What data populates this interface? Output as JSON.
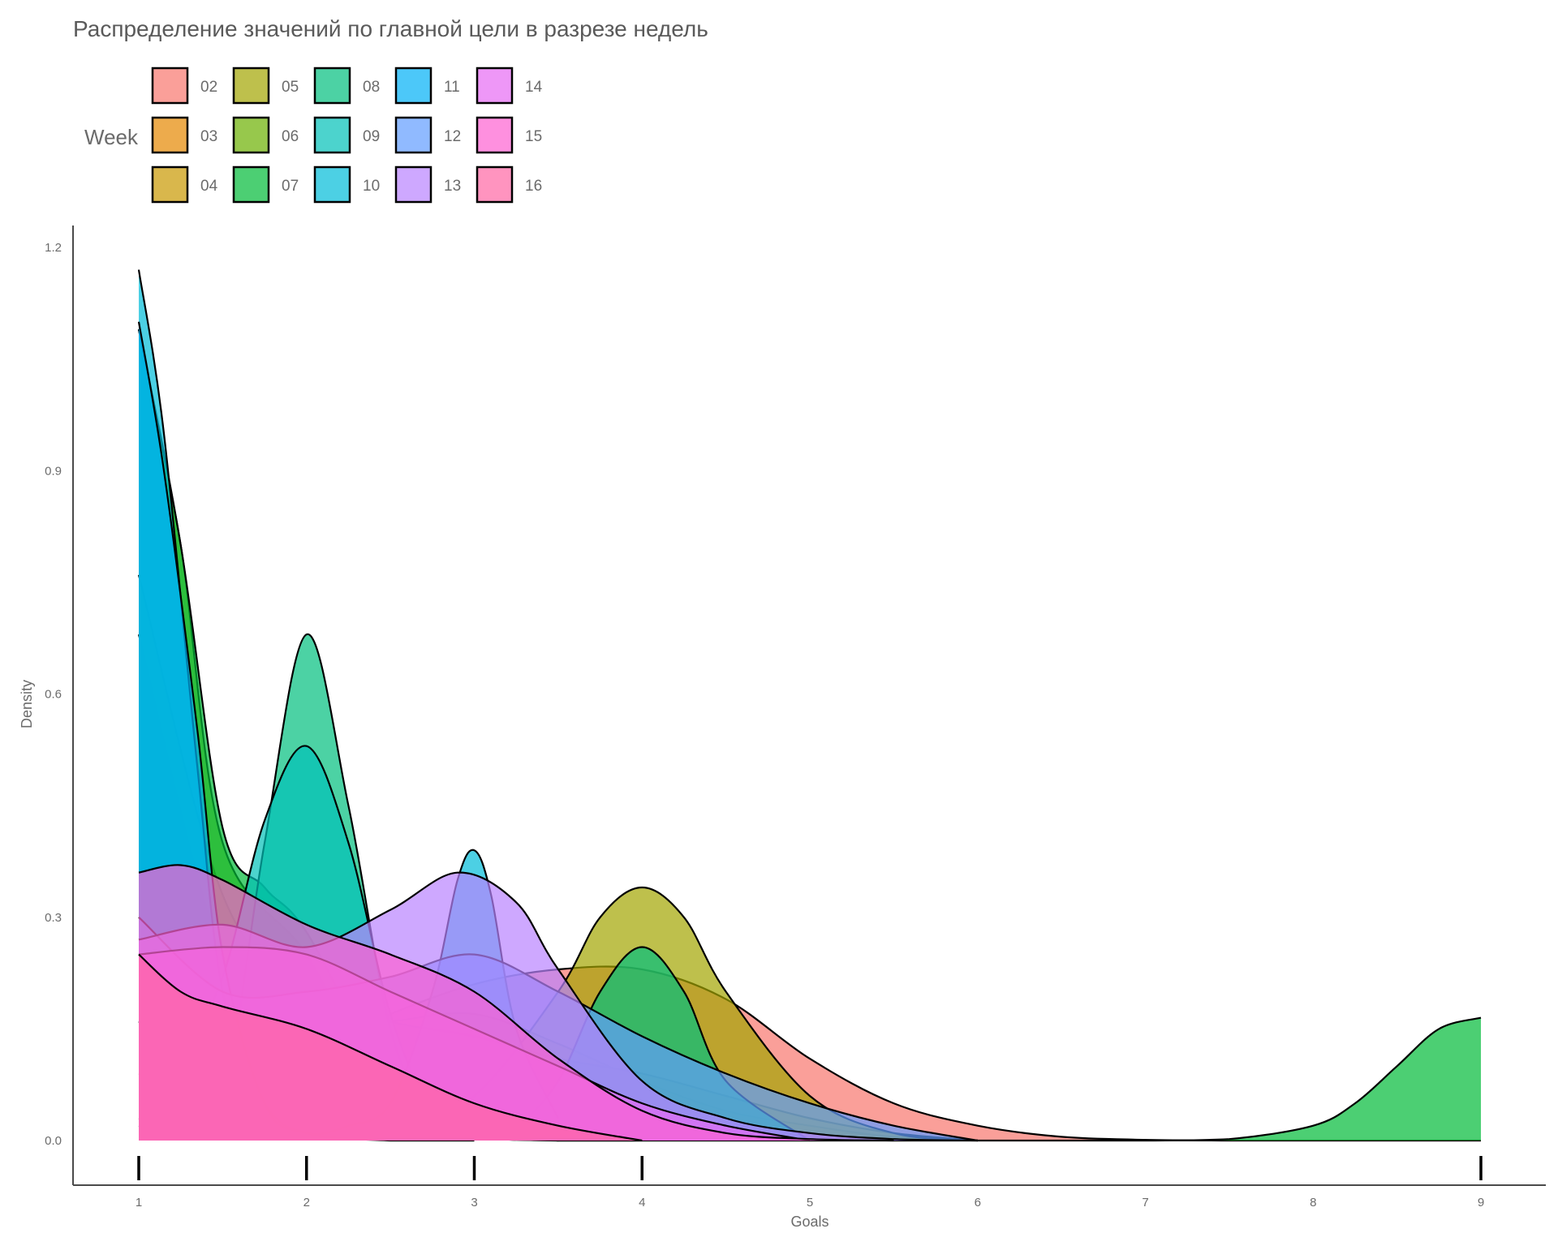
{
  "chart_data": {
    "type": "area",
    "subtype": "density",
    "title": "Распределение значений по главной цели в разрезе недель",
    "xlabel": "Goals",
    "ylabel": "Density",
    "xlim": [
      1,
      9
    ],
    "ylim": [
      0,
      1.2
    ],
    "x_ticks": [
      "1",
      "2",
      "3",
      "4",
      "5",
      "6",
      "7",
      "8",
      "9"
    ],
    "y_ticks": [
      "0.0",
      "0.3",
      "0.6",
      "0.9",
      "1.2"
    ],
    "legend_title": "Week",
    "legend_position": "top-left",
    "grid": false,
    "series": [
      {
        "name": "02",
        "color": "#F8766D",
        "x": [
          1,
          1.5,
          2,
          2.5,
          3,
          3.5,
          4,
          4.5,
          5,
          5.5,
          6,
          6.5,
          7,
          7.5,
          8,
          8.5,
          9
        ],
        "values": [
          0.09,
          0.08,
          0.12,
          0.17,
          0.21,
          0.23,
          0.23,
          0.19,
          0.11,
          0.05,
          0.02,
          0.005,
          0.001,
          0,
          0,
          0,
          0
        ]
      },
      {
        "name": "03",
        "color": "#E58700",
        "x": [
          1,
          1.5,
          2,
          2.5,
          3,
          3.5,
          4,
          4.5,
          5,
          5.5,
          6
        ],
        "values": [
          0.68,
          0.25,
          0.15,
          0.16,
          0.17,
          0.13,
          0.08,
          0.04,
          0.02,
          0.005,
          0
        ]
      },
      {
        "name": "04",
        "color": "#C99800",
        "x": [
          1,
          1.5,
          2,
          2.5,
          3,
          3.5,
          4,
          4.5,
          5,
          5.5,
          6
        ],
        "values": [
          0.76,
          0.33,
          0.2,
          0.16,
          0.14,
          0.11,
          0.09,
          0.06,
          0.03,
          0.01,
          0
        ]
      },
      {
        "name": "05",
        "color": "#A3A500",
        "x": [
          1,
          1.25,
          1.5,
          2,
          2.5,
          3,
          3.5,
          3.75,
          4,
          4.25,
          4.5,
          5,
          5.5,
          6
        ],
        "values": [
          0.03,
          0.02,
          0.01,
          0.005,
          0.01,
          0.06,
          0.2,
          0.3,
          0.34,
          0.3,
          0.2,
          0.06,
          0.01,
          0
        ]
      },
      {
        "name": "06",
        "color": "#6BB100",
        "x": [
          1,
          1.25,
          1.5,
          2,
          2.5,
          3,
          3.5,
          4
        ],
        "values": [
          1.09,
          0.8,
          0.4,
          0.25,
          0.05,
          0.005,
          0,
          0
        ]
      },
      {
        "name": "07",
        "color": "#00BA38",
        "x": [
          1,
          1.25,
          1.5,
          1.75,
          2,
          2.5,
          3,
          3.5,
          4,
          5,
          6,
          7,
          7.5,
          8,
          8.25,
          8.5,
          8.75,
          9
        ],
        "values": [
          1.09,
          0.8,
          0.42,
          0.34,
          0.28,
          0.08,
          0.01,
          0,
          0,
          0,
          0,
          0,
          0.002,
          0.02,
          0.05,
          0.1,
          0.15,
          0.165
        ]
      },
      {
        "name": "08",
        "color": "#00BF7D",
        "x": [
          1,
          1.25,
          1.5,
          1.75,
          2,
          2.25,
          2.5,
          2.75,
          3,
          3.25,
          3.5,
          3.75,
          4,
          4.25,
          4.5,
          5
        ],
        "values": [
          0.02,
          0.01,
          0.05,
          0.4,
          0.68,
          0.45,
          0.15,
          0.03,
          0.01,
          0.02,
          0.08,
          0.2,
          0.26,
          0.2,
          0.08,
          0
        ]
      },
      {
        "name": "09",
        "color": "#00C0B8",
        "x": [
          1,
          1.25,
          1.5,
          1.75,
          2,
          2.25,
          2.5,
          2.75,
          3,
          3.5
        ],
        "values": [
          0.16,
          0.12,
          0.22,
          0.43,
          0.53,
          0.4,
          0.17,
          0.04,
          0.005,
          0
        ]
      },
      {
        "name": "10",
        "color": "#00BCD8",
        "x": [
          1,
          1.15,
          1.35,
          1.5,
          1.75,
          2,
          2.25,
          2.5,
          2.75,
          2.9,
          3,
          3.1,
          3.25,
          3.5
        ],
        "values": [
          1.17,
          0.95,
          0.5,
          0.2,
          0.05,
          0.01,
          0.02,
          0.05,
          0.2,
          0.35,
          0.39,
          0.33,
          0.15,
          0.03
        ]
      },
      {
        "name": "11",
        "color": "#00B0F6",
        "x": [
          1,
          1.15,
          1.35,
          1.5,
          1.75,
          2,
          2.5,
          3
        ],
        "values": [
          1.1,
          0.9,
          0.55,
          0.25,
          0.05,
          0.01,
          0,
          0
        ]
      },
      {
        "name": "12",
        "color": "#619CFF",
        "x": [
          1,
          1.5,
          2,
          2.5,
          3,
          3.5,
          4,
          4.5,
          5,
          5.5,
          6
        ],
        "values": [
          0.3,
          0.2,
          0.2,
          0.22,
          0.25,
          0.2,
          0.14,
          0.09,
          0.05,
          0.02,
          0
        ]
      },
      {
        "name": "13",
        "color": "#B983FF",
        "x": [
          1,
          1.5,
          2,
          2.5,
          2.9,
          3.25,
          3.5,
          4,
          4.5,
          5,
          5.5,
          6
        ],
        "values": [
          0.27,
          0.29,
          0.26,
          0.31,
          0.36,
          0.32,
          0.23,
          0.08,
          0.03,
          0.01,
          0.002,
          0
        ]
      },
      {
        "name": "14",
        "color": "#E76BF3",
        "x": [
          1,
          1.5,
          2,
          2.5,
          3,
          3.5,
          4,
          4.5,
          5
        ],
        "values": [
          0.25,
          0.26,
          0.25,
          0.2,
          0.15,
          0.1,
          0.05,
          0.02,
          0
        ]
      },
      {
        "name": "15",
        "color": "#FD61D1",
        "x": [
          1,
          1.25,
          1.5,
          2,
          2.5,
          3,
          3.5,
          4,
          4.5,
          5,
          5.5
        ],
        "values": [
          0.36,
          0.37,
          0.35,
          0.29,
          0.25,
          0.2,
          0.11,
          0.04,
          0.01,
          0.002,
          0
        ]
      },
      {
        "name": "16",
        "color": "#FF67A4",
        "x": [
          1,
          1.25,
          1.5,
          2,
          2.5,
          3,
          3.5,
          4
        ],
        "values": [
          0.25,
          0.2,
          0.18,
          0.15,
          0.1,
          0.05,
          0.02,
          0
        ]
      }
    ]
  }
}
